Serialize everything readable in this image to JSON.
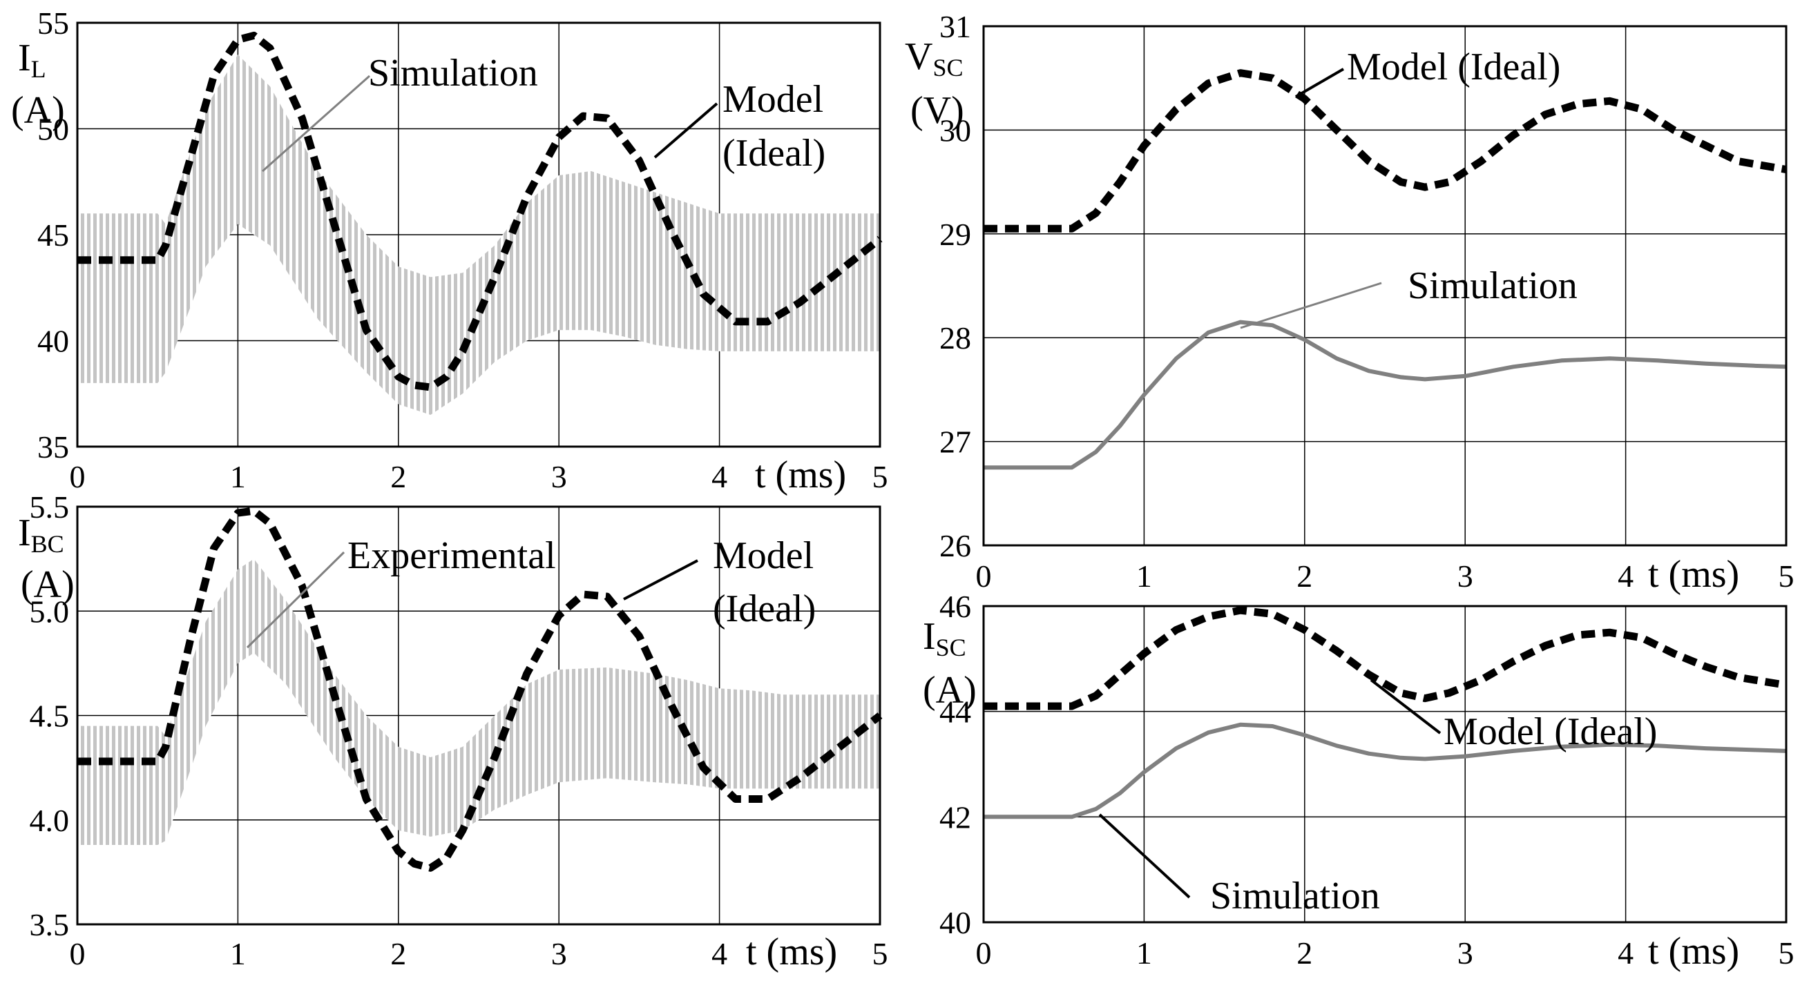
{
  "chart_data": [
    {
      "id": "il",
      "type": "line",
      "ylabel": "I",
      "ylabel_sub": "L",
      "yunit": "(A)",
      "xlabel": "t (ms)",
      "xlim": [
        0,
        5
      ],
      "ylim": [
        35,
        55
      ],
      "yticks": [
        35,
        40,
        45,
        50,
        55
      ],
      "ytick_labels": [
        "35",
        "40",
        "45",
        "50",
        "55"
      ],
      "xticks": [
        0,
        1,
        2,
        3,
        4,
        5
      ],
      "xtick_labels": [
        "0",
        "1",
        "2",
        "3",
        "4",
        "5"
      ],
      "series": [
        {
          "name": "Simulation",
          "style": "ripple-band",
          "color": "#bfbfbf",
          "x": [
            0,
            0.5,
            0.55,
            0.8,
            1.0,
            1.2,
            1.5,
            1.8,
            2.0,
            2.2,
            2.4,
            2.6,
            2.8,
            3.0,
            3.2,
            3.4,
            3.6,
            3.8,
            4.0,
            4.2,
            4.4,
            4.6,
            4.8,
            5.0
          ],
          "upper": [
            46,
            46,
            45.5,
            51,
            53.5,
            52,
            48,
            45,
            43.5,
            43,
            43.2,
            44.5,
            46.5,
            47.8,
            48,
            47.5,
            47,
            46.5,
            46,
            46,
            46,
            46,
            46,
            46
          ],
          "lower": [
            38,
            38,
            38.5,
            43.5,
            45.5,
            44.5,
            41,
            38.5,
            37,
            36.5,
            37.5,
            39,
            40,
            40.5,
            40.5,
            40.2,
            39.8,
            39.6,
            39.5,
            39.5,
            39.5,
            39.5,
            39.5,
            39.5
          ]
        },
        {
          "name": "Model (Ideal)",
          "style": "dashed",
          "color": "#000000",
          "x": [
            0,
            0.25,
            0.5,
            0.55,
            0.7,
            0.85,
            1.0,
            1.1,
            1.2,
            1.4,
            1.6,
            1.8,
            2.0,
            2.1,
            2.2,
            2.3,
            2.4,
            2.6,
            2.8,
            3.0,
            3.15,
            3.3,
            3.5,
            3.7,
            3.9,
            4.1,
            4.3,
            4.5,
            4.7,
            5.0
          ],
          "y": [
            43.8,
            43.8,
            43.8,
            44.5,
            48.5,
            52.5,
            54.2,
            54.4,
            53.8,
            50.5,
            45.5,
            40.5,
            38.3,
            37.9,
            37.8,
            38.3,
            39.5,
            43,
            46.8,
            49.6,
            50.6,
            50.5,
            48.5,
            45.2,
            42.2,
            40.9,
            40.9,
            41.8,
            43,
            44.8
          ]
        }
      ],
      "annotations": [
        {
          "text": "Simulation"
        },
        {
          "text": "Model"
        },
        {
          "text": "(Ideal)"
        }
      ]
    },
    {
      "id": "ibc",
      "type": "line",
      "ylabel": "I",
      "ylabel_sub": "BC",
      "yunit": "(A)",
      "xlabel": "t (ms)",
      "xlim": [
        0,
        5
      ],
      "ylim": [
        3.5,
        5.5
      ],
      "yticks": [
        3.5,
        4.0,
        4.5,
        5.0,
        5.5
      ],
      "ytick_labels": [
        "3.5",
        "4.0",
        "4.5",
        "5.0",
        "5.5"
      ],
      "xticks": [
        0,
        1,
        2,
        3,
        4,
        5
      ],
      "xtick_labels": [
        "0",
        "1",
        "2",
        "3",
        "4",
        "5"
      ],
      "series": [
        {
          "name": "Experimental",
          "style": "ripple-band",
          "color": "#bfbfbf",
          "x": [
            0,
            0.5,
            0.55,
            0.8,
            1.0,
            1.1,
            1.3,
            1.6,
            1.8,
            2.0,
            2.2,
            2.4,
            2.6,
            2.8,
            3.0,
            3.3,
            3.6,
            3.8,
            4.0,
            4.2,
            4.4,
            4.6,
            4.8,
            5.0
          ],
          "upper": [
            4.45,
            4.45,
            4.4,
            4.95,
            5.2,
            5.25,
            5.05,
            4.7,
            4.5,
            4.35,
            4.3,
            4.35,
            4.5,
            4.65,
            4.72,
            4.73,
            4.7,
            4.67,
            4.63,
            4.62,
            4.6,
            4.6,
            4.6,
            4.6
          ],
          "lower": [
            3.88,
            3.88,
            3.9,
            4.45,
            4.75,
            4.8,
            4.65,
            4.3,
            4.1,
            3.95,
            3.92,
            3.95,
            4.05,
            4.12,
            4.18,
            4.2,
            4.18,
            4.17,
            4.15,
            4.15,
            4.15,
            4.15,
            4.15,
            4.15
          ]
        },
        {
          "name": "Model (Ideal)",
          "style": "dashed",
          "color": "#000000",
          "x": [
            0,
            0.25,
            0.5,
            0.55,
            0.7,
            0.85,
            1.0,
            1.1,
            1.2,
            1.4,
            1.6,
            1.8,
            2.0,
            2.1,
            2.2,
            2.3,
            2.4,
            2.6,
            2.8,
            3.0,
            3.15,
            3.3,
            3.5,
            3.7,
            3.9,
            4.1,
            4.3,
            4.5,
            4.7,
            5.0
          ],
          "y": [
            4.28,
            4.28,
            4.28,
            4.35,
            4.85,
            5.3,
            5.47,
            5.48,
            5.42,
            5.12,
            4.6,
            4.1,
            3.85,
            3.79,
            3.77,
            3.82,
            3.95,
            4.3,
            4.7,
            4.98,
            5.08,
            5.07,
            4.88,
            4.55,
            4.25,
            4.1,
            4.1,
            4.2,
            4.32,
            4.5
          ]
        }
      ],
      "annotations": [
        {
          "text": "Experimental"
        },
        {
          "text": "Model"
        },
        {
          "text": "(Ideal)"
        }
      ]
    },
    {
      "id": "vsc",
      "type": "line",
      "ylabel": "V",
      "ylabel_sub": "SC",
      "yunit": "(V)",
      "xlabel": "t (ms)",
      "xlim": [
        0,
        5
      ],
      "ylim": [
        26,
        31
      ],
      "yticks": [
        26,
        27,
        28,
        29,
        30,
        31
      ],
      "ytick_labels": [
        "26",
        "27",
        "28",
        "29",
        "30",
        "31"
      ],
      "xticks": [
        0,
        1,
        2,
        3,
        4,
        5
      ],
      "xtick_labels": [
        "0",
        "1",
        "2",
        "3",
        "4",
        "5"
      ],
      "series": [
        {
          "name": "Model (Ideal)",
          "style": "dashed",
          "color": "#000000",
          "x": [
            0,
            0.25,
            0.55,
            0.7,
            0.85,
            1.0,
            1.2,
            1.4,
            1.6,
            1.8,
            2.0,
            2.2,
            2.4,
            2.6,
            2.75,
            2.9,
            3.1,
            3.3,
            3.5,
            3.7,
            3.9,
            4.1,
            4.3,
            4.5,
            4.7,
            5.0
          ],
          "y": [
            29.05,
            29.05,
            29.05,
            29.2,
            29.5,
            29.85,
            30.2,
            30.45,
            30.55,
            30.5,
            30.3,
            30.0,
            29.7,
            29.5,
            29.45,
            29.5,
            29.7,
            29.95,
            30.15,
            30.25,
            30.28,
            30.2,
            30.0,
            29.85,
            29.7,
            29.62
          ]
        },
        {
          "name": "Simulation",
          "style": "solid",
          "color": "#808080",
          "x": [
            0,
            0.25,
            0.55,
            0.7,
            0.85,
            1.0,
            1.2,
            1.4,
            1.6,
            1.8,
            2.0,
            2.2,
            2.4,
            2.6,
            2.75,
            3.0,
            3.3,
            3.6,
            3.9,
            4.2,
            4.5,
            4.8,
            5.0
          ],
          "y": [
            26.75,
            26.75,
            26.75,
            26.9,
            27.15,
            27.45,
            27.8,
            28.05,
            28.15,
            28.12,
            27.98,
            27.8,
            27.68,
            27.62,
            27.6,
            27.63,
            27.72,
            27.78,
            27.8,
            27.78,
            27.75,
            27.73,
            27.72
          ]
        }
      ],
      "annotations": [
        {
          "text": "Model (Ideal)"
        },
        {
          "text": "Simulation"
        }
      ]
    },
    {
      "id": "isc",
      "type": "line",
      "ylabel": "I",
      "ylabel_sub": "SC",
      "yunit": "(A)",
      "xlabel": "t (ms)",
      "xlim": [
        0,
        5
      ],
      "ylim": [
        40,
        46
      ],
      "yticks": [
        40,
        42,
        44,
        46
      ],
      "ytick_labels": [
        "40",
        "42",
        "44",
        "46"
      ],
      "xticks": [
        0,
        1,
        2,
        3,
        4,
        5
      ],
      "xtick_labels": [
        "0",
        "1",
        "2",
        "3",
        "4",
        "5"
      ],
      "series": [
        {
          "name": "Model (Ideal)",
          "style": "dashed",
          "color": "#000000",
          "x": [
            0,
            0.25,
            0.55,
            0.7,
            0.85,
            1.0,
            1.2,
            1.4,
            1.6,
            1.8,
            2.0,
            2.2,
            2.4,
            2.6,
            2.75,
            2.9,
            3.1,
            3.3,
            3.5,
            3.7,
            3.9,
            4.1,
            4.3,
            4.5,
            4.7,
            5.0
          ],
          "y": [
            44.1,
            44.1,
            44.1,
            44.3,
            44.7,
            45.1,
            45.55,
            45.8,
            45.92,
            45.85,
            45.55,
            45.15,
            44.7,
            44.35,
            44.25,
            44.35,
            44.6,
            44.95,
            45.25,
            45.45,
            45.5,
            45.4,
            45.1,
            44.85,
            44.65,
            44.5
          ]
        },
        {
          "name": "Simulation",
          "style": "solid",
          "color": "#808080",
          "x": [
            0,
            0.25,
            0.55,
            0.7,
            0.85,
            1.0,
            1.2,
            1.4,
            1.6,
            1.8,
            2.0,
            2.2,
            2.4,
            2.6,
            2.75,
            3.0,
            3.3,
            3.6,
            3.9,
            4.2,
            4.5,
            4.8,
            5.0
          ],
          "y": [
            42.0,
            42.0,
            42.0,
            42.15,
            42.45,
            42.85,
            43.3,
            43.6,
            43.75,
            43.72,
            43.55,
            43.35,
            43.2,
            43.12,
            43.1,
            43.15,
            43.25,
            43.33,
            43.37,
            43.35,
            43.3,
            43.27,
            43.25
          ]
        }
      ],
      "annotations": [
        {
          "text": "Model (Ideal)"
        },
        {
          "text": "Simulation"
        }
      ]
    }
  ]
}
